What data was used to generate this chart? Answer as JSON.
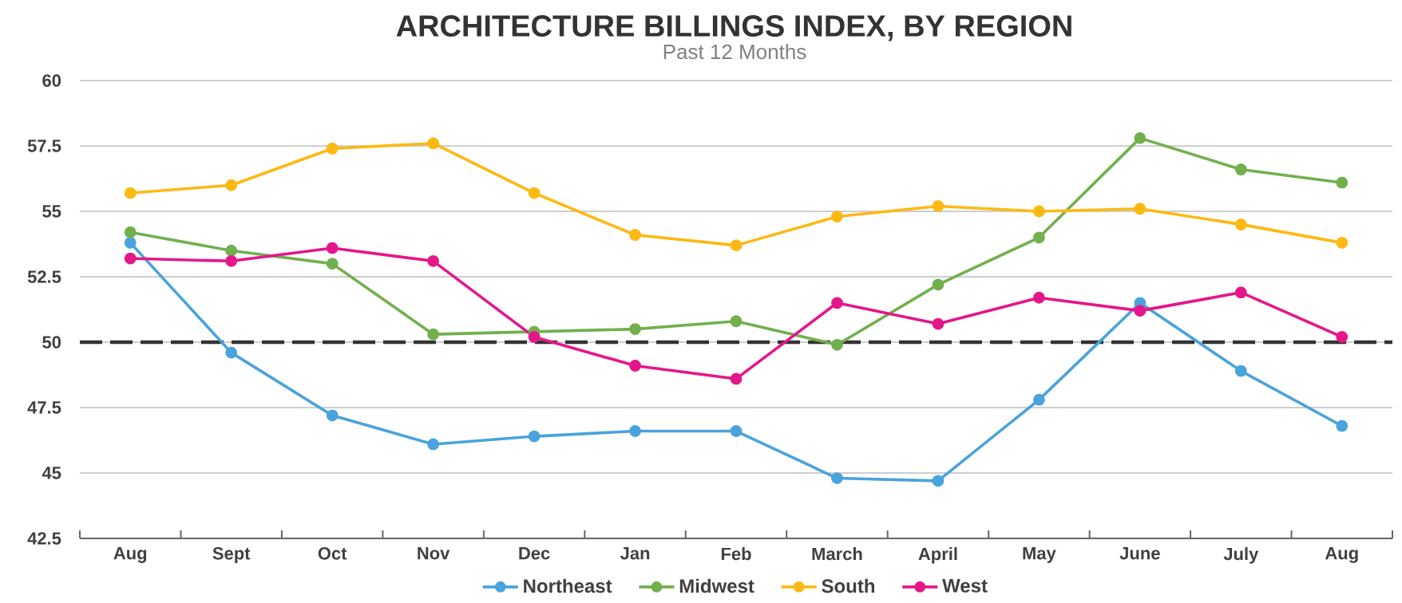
{
  "chart_data": {
    "type": "line",
    "title": "ARCHITECTURE BILLINGS INDEX, BY REGION",
    "subtitle": "Past 12 Months",
    "categories": [
      "Aug",
      "Sept",
      "Oct",
      "Nov",
      "Dec",
      "Jan",
      "Feb",
      "March",
      "April",
      "May",
      "June",
      "July",
      "Aug"
    ],
    "series": [
      {
        "name": "Northeast",
        "color": "#4aa3dc",
        "values": [
          53.8,
          49.6,
          47.2,
          46.1,
          46.4,
          46.6,
          46.6,
          44.8,
          44.7,
          47.8,
          51.5,
          48.9,
          46.8
        ]
      },
      {
        "name": "Midwest",
        "color": "#72b04e",
        "values": [
          54.2,
          53.5,
          53.0,
          50.3,
          50.4,
          50.5,
          50.8,
          49.9,
          52.2,
          54.0,
          57.8,
          56.6,
          56.1
        ]
      },
      {
        "name": "South",
        "color": "#fdb913",
        "values": [
          55.7,
          56.0,
          57.4,
          57.6,
          55.7,
          54.1,
          53.7,
          54.8,
          55.2,
          55.0,
          55.1,
          54.5,
          53.8
        ]
      },
      {
        "name": "West",
        "color": "#e5168a",
        "values": [
          53.2,
          53.1,
          53.6,
          53.1,
          50.2,
          49.1,
          48.6,
          51.5,
          50.7,
          51.7,
          51.2,
          51.9,
          50.2
        ]
      }
    ],
    "ylim": [
      42.5,
      60
    ],
    "yticks": [
      42.5,
      45,
      47.5,
      50,
      52.5,
      55,
      57.5,
      60
    ],
    "ref_lines": [
      {
        "axis": "y",
        "value": 50,
        "color": "#333333",
        "line_style": "dashed"
      }
    ],
    "grid": "y",
    "legend": "bottom",
    "marker": "circle",
    "line_style": "solid"
  }
}
